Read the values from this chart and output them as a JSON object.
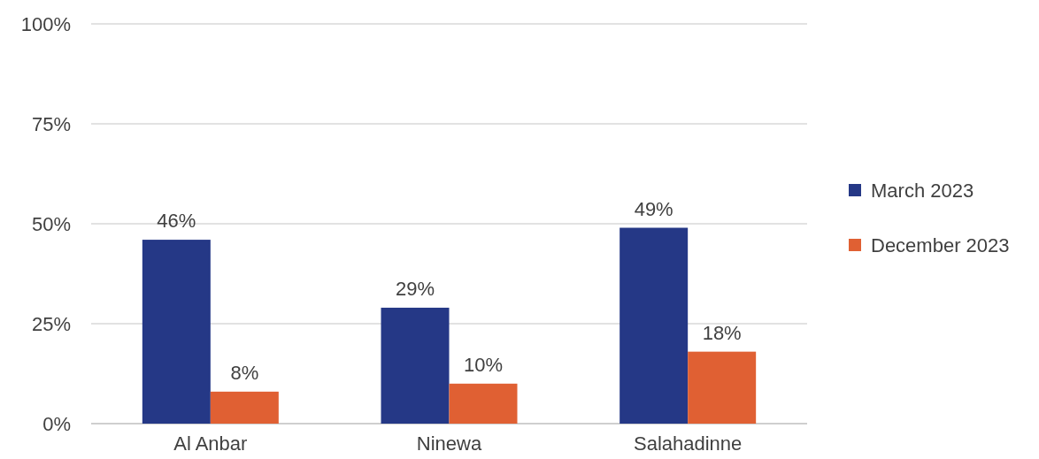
{
  "chart_data": {
    "type": "bar",
    "categories": [
      "Al Anbar",
      "Ninewa",
      "Salahadinne"
    ],
    "series": [
      {
        "name": "March 2023",
        "color": "#253886",
        "values": [
          46,
          29,
          49
        ],
        "value_labels": [
          "46%",
          "29%",
          "49%"
        ]
      },
      {
        "name": "December 2023",
        "color": "#e06033",
        "values": [
          8,
          10,
          18
        ],
        "value_labels": [
          "8%",
          "10%",
          "18%"
        ]
      }
    ],
    "ylim": [
      0,
      100
    ],
    "yticks": [
      {
        "value": 0,
        "label": "0%"
      },
      {
        "value": 25,
        "label": "25%"
      },
      {
        "value": 50,
        "label": "50%"
      },
      {
        "value": 75,
        "label": "75%"
      },
      {
        "value": 100,
        "label": "100%"
      }
    ],
    "grid": "y",
    "legend": "right"
  }
}
